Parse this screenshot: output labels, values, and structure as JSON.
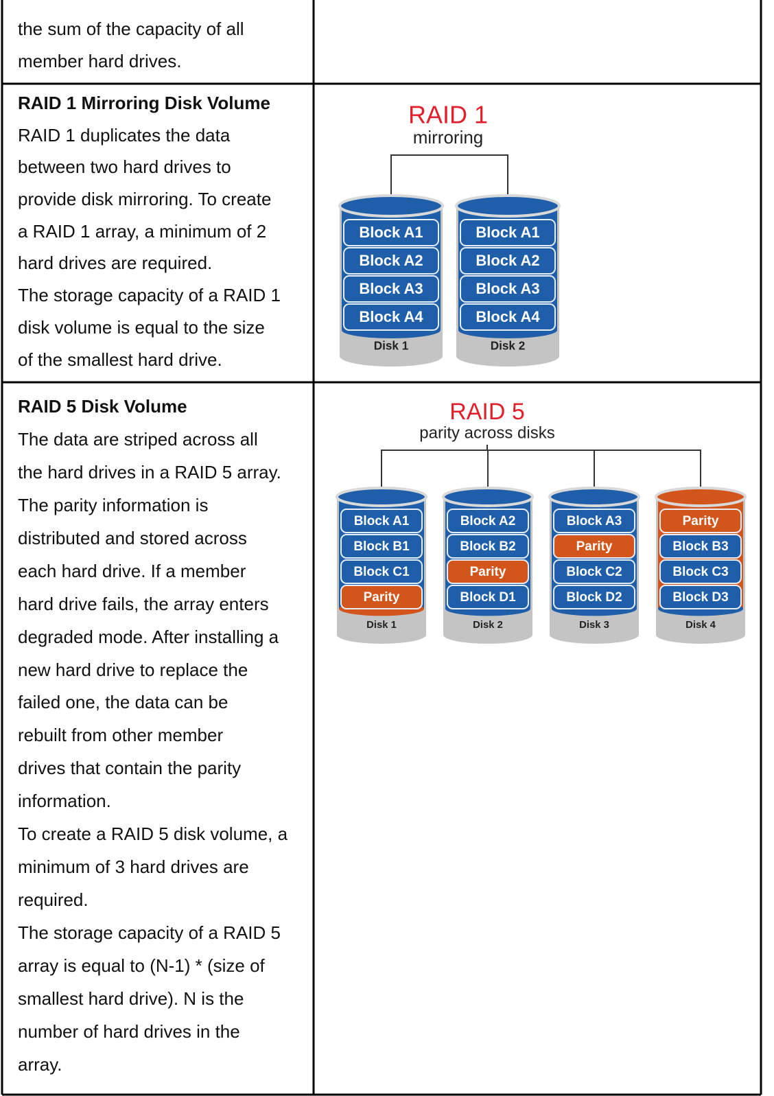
{
  "table": {
    "rows": [
      {
        "lines": [
          "the sum of the capacity of all",
          "member hard drives."
        ]
      },
      {
        "heading": "RAID 1 Mirroring Disk Volume",
        "lines": [
          "RAID 1 duplicates the data",
          "between two hard drives to",
          "provide disk mirroring. To create",
          "a RAID 1 array, a minimum of 2",
          "hard drives are required.",
          "The storage capacity of a RAID 1",
          "disk volume is equal to the size",
          "of the smallest hard drive."
        ],
        "diagram": {
          "title": "RAID 1",
          "subtitle": "mirroring",
          "disks": [
            {
              "label": "Disk 1",
              "blocks": [
                {
                  "label": "Block A1",
                  "color": "#1f5faa"
                },
                {
                  "label": "Block A2",
                  "color": "#1f5faa"
                },
                {
                  "label": "Block A3",
                  "color": "#1f5faa"
                },
                {
                  "label": "Block A4",
                  "color": "#1f5faa"
                }
              ]
            },
            {
              "label": "Disk 2",
              "blocks": [
                {
                  "label": "Block A1",
                  "color": "#1f5faa"
                },
                {
                  "label": "Block A2",
                  "color": "#1f5faa"
                },
                {
                  "label": "Block A3",
                  "color": "#1f5faa"
                },
                {
                  "label": "Block A4",
                  "color": "#1f5faa"
                }
              ]
            }
          ]
        }
      },
      {
        "heading": "RAID 5 Disk Volume",
        "lines": [
          "The data are striped across all",
          "the hard drives in a RAID 5 array.",
          "The parity information is",
          "distributed and stored across",
          "each hard drive. If a member",
          "hard drive fails, the array enters",
          "degraded mode. After installing a",
          "new hard drive to replace the",
          "failed one, the data can be",
          "rebuilt from other member",
          "drives that contain the parity",
          "information.",
          "To create a RAID 5 disk volume, a",
          "minimum of 3 hard drives are",
          "required.",
          "The storage capacity of a RAID 5",
          "array is equal to (N-1) * (size of",
          "smallest hard drive). N is the",
          "number of hard drives in the",
          "array."
        ],
        "diagram": {
          "title": "RAID 5",
          "subtitle": "parity across disks",
          "disks": [
            {
              "label": "Disk 1",
              "blocks": [
                {
                  "label": "Block A1",
                  "color": "#1f5faa"
                },
                {
                  "label": "Block B1",
                  "color": "#1f5faa"
                },
                {
                  "label": "Block C1",
                  "color": "#1f5faa"
                },
                {
                  "label": "Parity",
                  "color": "#d2561c"
                }
              ]
            },
            {
              "label": "Disk 2",
              "blocks": [
                {
                  "label": "Block A2",
                  "color": "#1f5faa"
                },
                {
                  "label": "Block B2",
                  "color": "#1f5faa"
                },
                {
                  "label": "Parity",
                  "color": "#d2561c"
                },
                {
                  "label": "Block D1",
                  "color": "#1f5faa"
                }
              ]
            },
            {
              "label": "Disk 3",
              "blocks": [
                {
                  "label": "Block A3",
                  "color": "#1f5faa"
                },
                {
                  "label": "Parity",
                  "color": "#d2561c"
                },
                {
                  "label": "Block C2",
                  "color": "#1f5faa"
                },
                {
                  "label": "Block D2",
                  "color": "#1f5faa"
                }
              ]
            },
            {
              "label": "Disk 4",
              "blocks": [
                {
                  "label": "Parity",
                  "color": "#d2561c"
                },
                {
                  "label": "Block B3",
                  "color": "#1f5faa"
                },
                {
                  "label": "Block C3",
                  "color": "#1f5faa"
                },
                {
                  "label": "Block D3",
                  "color": "#1f5faa"
                }
              ]
            }
          ]
        }
      }
    ]
  }
}
